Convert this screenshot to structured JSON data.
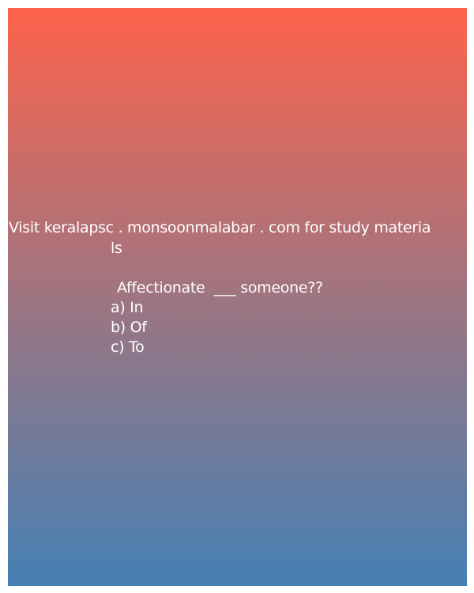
{
  "colors": {
    "gradient_top": "#fd634b",
    "gradient_mid": "#9e7581",
    "gradient_bottom": "#4580b4",
    "text": "#ffffff"
  },
  "header": {
    "line1": "Visit keralapsc . monsoonmalabar . com for study materia",
    "line2": "ls"
  },
  "question": {
    "text": "Affectionate  ___ someone??",
    "options": [
      "a) In",
      "b) Of",
      "c) To"
    ]
  }
}
